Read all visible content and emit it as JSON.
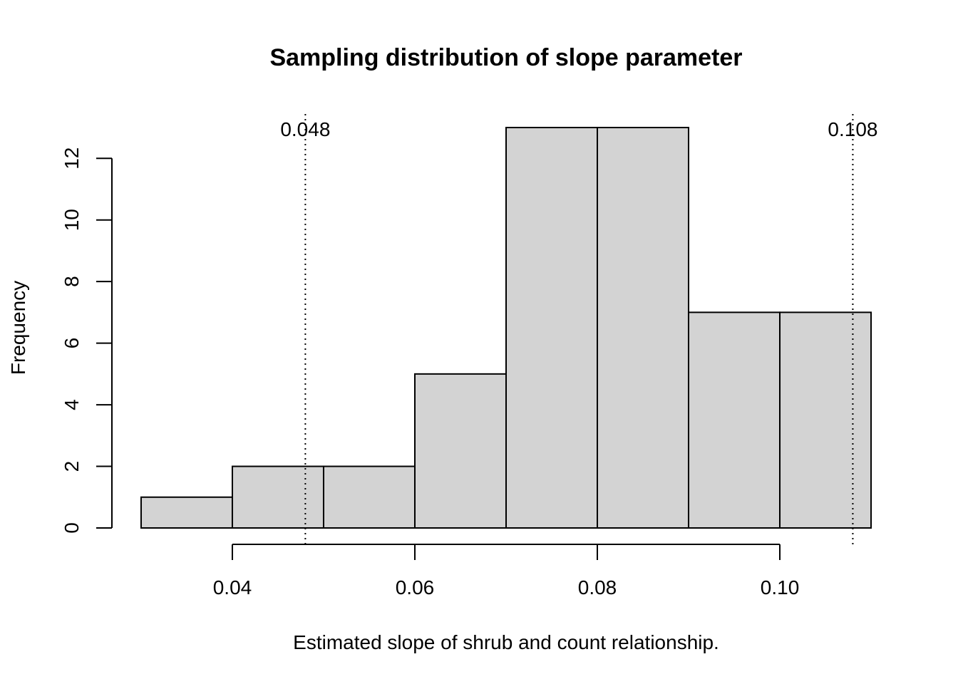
{
  "chart_data": {
    "type": "bar",
    "subtype": "histogram",
    "title": "Sampling distribution of slope parameter",
    "xlabel": "Estimated slope of shrub and count relationship.",
    "ylabel": "Frequency",
    "bins": [
      {
        "start": 0.03,
        "end": 0.04,
        "count": 1
      },
      {
        "start": 0.04,
        "end": 0.05,
        "count": 2
      },
      {
        "start": 0.05,
        "end": 0.06,
        "count": 2
      },
      {
        "start": 0.06,
        "end": 0.07,
        "count": 5
      },
      {
        "start": 0.07,
        "end": 0.08,
        "count": 13
      },
      {
        "start": 0.08,
        "end": 0.09,
        "count": 13
      },
      {
        "start": 0.09,
        "end": 0.1,
        "count": 7
      },
      {
        "start": 0.1,
        "end": 0.11,
        "count": 7
      }
    ],
    "bar_fill": "#d3d3d3",
    "xticks": [
      {
        "value": 0.04,
        "label": "0.04"
      },
      {
        "value": 0.06,
        "label": "0.06"
      },
      {
        "value": 0.08,
        "label": "0.08"
      },
      {
        "value": 0.1,
        "label": "0.10"
      }
    ],
    "yticks": [
      {
        "value": 0,
        "label": "0"
      },
      {
        "value": 2,
        "label": "2"
      },
      {
        "value": 4,
        "label": "4"
      },
      {
        "value": 6,
        "label": "6"
      },
      {
        "value": 8,
        "label": "8"
      },
      {
        "value": 10,
        "label": "10"
      },
      {
        "value": 12,
        "label": "12"
      }
    ],
    "xlim": [
      0.0268,
      0.1132
    ],
    "ylim": [
      0,
      13.52
    ],
    "reference_lines": [
      {
        "value": 0.048,
        "label": "0.048",
        "style": "dotted"
      },
      {
        "value": 0.108,
        "label": "0.108",
        "style": "dotted"
      }
    ],
    "grid": false,
    "legend": "none"
  }
}
